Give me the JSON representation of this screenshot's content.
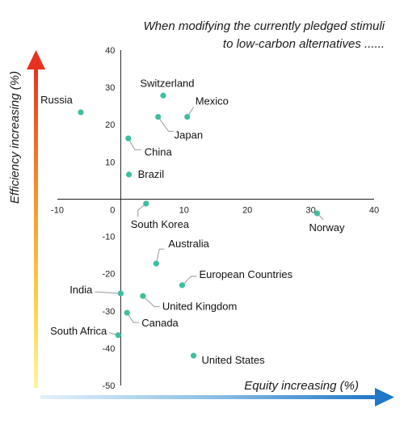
{
  "chart_data": {
    "type": "scatter",
    "title_lines": [
      "When modifying the currently pledged stimuli",
      "to low-carbon alternatives ......"
    ],
    "xlabel": "Equity increasing (%)",
    "ylabel": "Efficiency increasing (%)",
    "xlim": [
      -10,
      40
    ],
    "ylim": [
      -50,
      40
    ],
    "xticks": [
      -10,
      0,
      10,
      20,
      30,
      40
    ],
    "yticks": [
      40,
      30,
      20,
      10,
      -10,
      -20,
      -30,
      -40,
      -50
    ],
    "origin_label": "0",
    "grid": false,
    "point_color": "#3dbf9f",
    "points": [
      {
        "label": "Russia",
        "x": -6.3,
        "y": 23.3
      },
      {
        "label": "Switzerland",
        "x": 6.7,
        "y": 27.8
      },
      {
        "label": "Mexico",
        "x": 10.5,
        "y": 22.1
      },
      {
        "label": "Japan",
        "x": 5.9,
        "y": 22.1
      },
      {
        "label": "China",
        "x": 1.2,
        "y": 16.3
      },
      {
        "label": "Brazil",
        "x": 1.3,
        "y": 6.6
      },
      {
        "label": "South Korea",
        "x": 4.0,
        "y": -1.2
      },
      {
        "label": "Norway",
        "x": 31.0,
        "y": -3.8
      },
      {
        "label": "Australia",
        "x": 5.6,
        "y": -17.3
      },
      {
        "label": "European Countries",
        "x": 9.7,
        "y": -23.1
      },
      {
        "label": "India",
        "x": 0.0,
        "y": -25.3
      },
      {
        "label": "United Kingdom",
        "x": 3.5,
        "y": -26.0
      },
      {
        "label": "Canada",
        "x": 1.0,
        "y": -30.5
      },
      {
        "label": "South Africa",
        "x": -0.4,
        "y": -36.5
      },
      {
        "label": "United States",
        "x": 11.5,
        "y": -42.0
      }
    ]
  }
}
